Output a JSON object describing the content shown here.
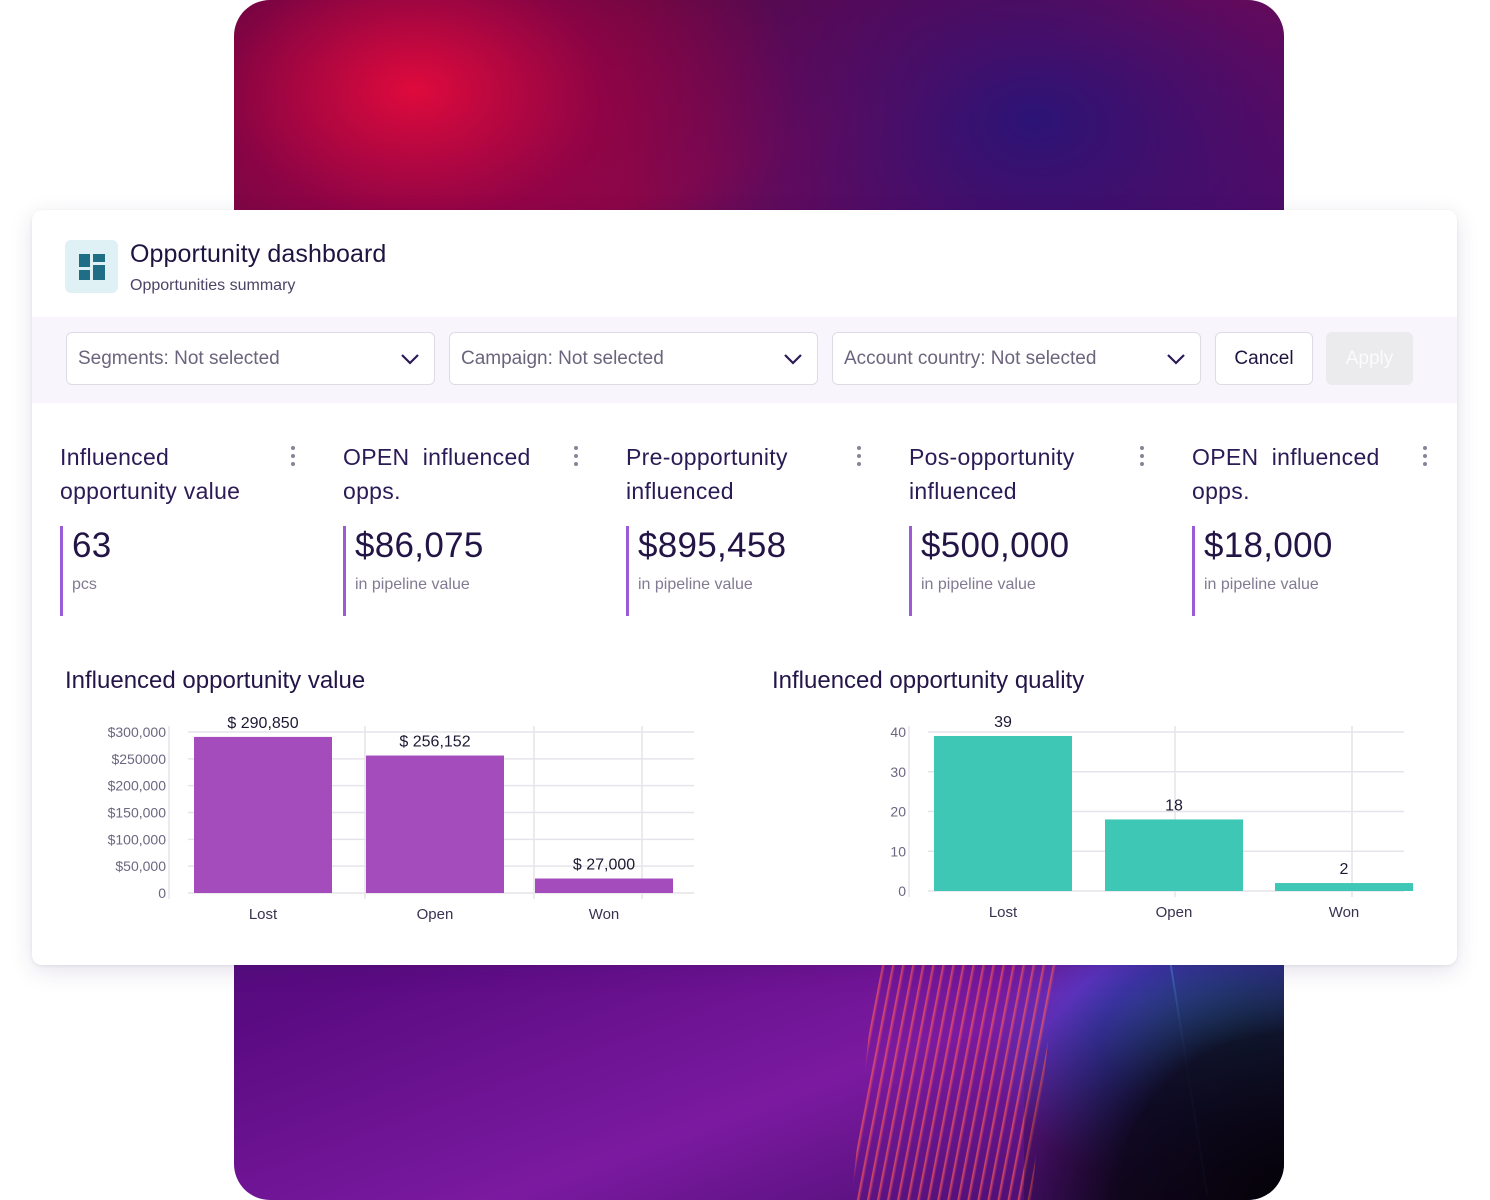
{
  "colors": {
    "accent_purple": "#a44cbb",
    "accent_teal": "#3ec7b4",
    "kpi_border": "#9b5bd6",
    "text_dark": "#231446"
  },
  "header": {
    "icon": "dashboard-icon",
    "title": "Opportunity dashboard",
    "subtitle": "Opportunities summary"
  },
  "filters": {
    "segments": "Segments: Not selected",
    "campaign": "Campaign: Not selected",
    "account_country": "Account country: Not selected",
    "cancel_label": "Cancel",
    "apply_label": "Apply"
  },
  "kpis": [
    {
      "title": "Influenced opportunity value",
      "value": "63",
      "unit": "pcs"
    },
    {
      "title": "OPEN  influenced opps.",
      "value": "$86,075",
      "unit": "in pipeline value"
    },
    {
      "title": "Pre-opportunity influenced",
      "value": "$895,458",
      "unit": "in pipeline value"
    },
    {
      "title": "Pos-opportunity influenced",
      "value": "$500,000",
      "unit": "in pipeline value"
    },
    {
      "title": "OPEN  influenced opps.",
      "value": "$18,000",
      "unit": "in pipeline value"
    }
  ],
  "charts": {
    "value_title": "Influenced opportunity value",
    "quality_title": "Influenced opportunity quality"
  },
  "chart_data": [
    {
      "type": "bar",
      "title": "Influenced opportunity value",
      "categories": [
        "Lost",
        "Open",
        "Won"
      ],
      "values": [
        290850,
        256152,
        27000
      ],
      "value_labels": [
        "$ 290,850",
        "$ 256,152",
        "$ 27,000"
      ],
      "y_ticks": [
        "0",
        "$50,000",
        "$100,000",
        "$150,000",
        "$200,000",
        "$250000",
        "$300,000"
      ],
      "y_tick_values": [
        0,
        50000,
        100000,
        150000,
        200000,
        250000,
        300000
      ],
      "ylim": [
        0,
        300000
      ],
      "grid": true,
      "color": "#a44cbb"
    },
    {
      "type": "bar",
      "title": "Influenced opportunity quality",
      "categories": [
        "Lost",
        "Open",
        "Won"
      ],
      "values": [
        39,
        18,
        2
      ],
      "value_labels": [
        "39",
        "18",
        "2"
      ],
      "y_ticks": [
        "0",
        "10",
        "20",
        "30",
        "40"
      ],
      "y_tick_values": [
        0,
        10,
        20,
        30,
        40
      ],
      "ylim": [
        0,
        40
      ],
      "grid": true,
      "color": "#3ec7b4"
    }
  ]
}
